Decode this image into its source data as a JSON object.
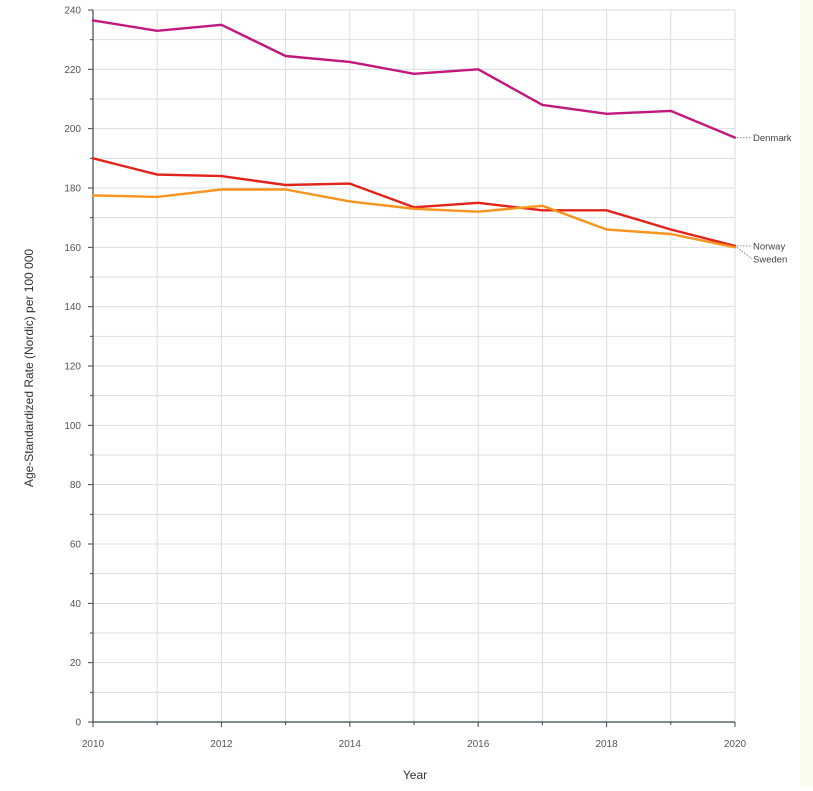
{
  "colors": {
    "background": "#ffffff",
    "side_panel": "#fbfaef",
    "grid": "#d9dde3",
    "axis": "#37474f",
    "leader": "#888888"
  },
  "chart_data": {
    "type": "line",
    "title": "",
    "xlabel": "Year",
    "ylabel": "Age-Standardized Rate (Nordic) per 100 000",
    "xlim": [
      2010,
      2020
    ],
    "ylim": [
      0,
      240
    ],
    "x_ticks": [
      2010,
      2012,
      2014,
      2016,
      2018,
      2020
    ],
    "y_ticks": [
      0,
      20,
      40,
      60,
      80,
      100,
      120,
      140,
      160,
      180,
      200,
      220,
      240
    ],
    "grid": true,
    "legend": "none",
    "x": [
      2010,
      2011,
      2012,
      2013,
      2014,
      2015,
      2016,
      2017,
      2018,
      2019,
      2020
    ],
    "series": [
      {
        "name": "Denmark",
        "color": "#c2187d",
        "values": [
          236.5,
          233,
          235,
          224.5,
          222.5,
          218.5,
          220,
          208,
          205,
          206,
          197
        ]
      },
      {
        "name": "Norway",
        "color": "#e2231a",
        "values": [
          190,
          184.5,
          184,
          181,
          181.5,
          173.5,
          175,
          172.5,
          172.5,
          166,
          160.5
        ]
      },
      {
        "name": "Sweden",
        "color": "#f7941d",
        "values": [
          177.5,
          177,
          179.5,
          179.5,
          175.5,
          173,
          172,
          174,
          166,
          164.5,
          160
        ]
      }
    ]
  }
}
